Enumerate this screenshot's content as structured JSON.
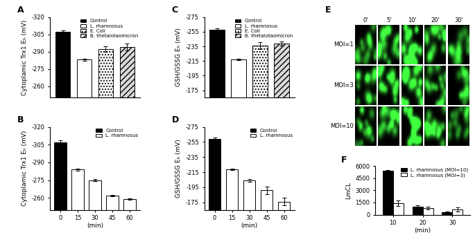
{
  "chart_data": [
    {
      "title": "A",
      "type": "bar",
      "y_label": "Cytoplamic Trx1 Eₕ (mV)",
      "ylim": [
        -250,
        -320
      ],
      "yticks": [
        -320,
        -305,
        -290,
        -275,
        -260
      ],
      "tick_labels": "y",
      "legend": "upper right",
      "series": [
        {
          "name": "Control",
          "color": "#000000",
          "values": [
            -307
          ],
          "errors": [
            1.5
          ]
        },
        {
          "name": "L. rhamnosus",
          "color": "#ffffff",
          "values": [
            -283
          ],
          "errors": [
            1
          ]
        },
        {
          "name": "E. Coli",
          "color": "#ffffff",
          "values": [
            -292
          ],
          "errors": [
            2.5
          ]
        },
        {
          "name": "B. thetaiotaomicron",
          "color": "#d9d9d9",
          "values": [
            -294
          ],
          "errors": [
            3
          ]
        }
      ]
    },
    {
      "title": "B",
      "type": "bar",
      "y_label": "Cytoplamic Trx1 Eₕ (mV)",
      "x_label": "(min)",
      "categories": [
        "0",
        "15",
        "30",
        "45",
        "60"
      ],
      "ylim": [
        -250,
        -320
      ],
      "yticks": [
        -320,
        -305,
        -290,
        -275,
        -260
      ],
      "legend": "upper right",
      "series": [
        {
          "name": "Control",
          "color": "#000000",
          "values": [
            -307,
            null,
            null,
            null,
            null
          ],
          "errors": [
            1.5,
            null,
            null,
            null,
            null
          ]
        },
        {
          "name": "L. rhamnosus",
          "color": "#ffffff",
          "values": [
            null,
            -284,
            -275,
            -262,
            -259
          ],
          "errors": [
            null,
            1,
            0.8,
            0.6,
            0.6
          ]
        }
      ]
    },
    {
      "title": "C",
      "type": "bar",
      "y_label": "GSH/GSSG Eₕ (mV)",
      "ylim": [
        -165,
        -275
      ],
      "yticks": [
        -275,
        -255,
        -235,
        -215,
        -195,
        -175
      ],
      "tick_labels": "y",
      "legend": "upper right",
      "series": [
        {
          "name": "Control",
          "color": "#000000",
          "values": [
            -258
          ],
          "errors": [
            1.5
          ]
        },
        {
          "name": "L. rhamnosus",
          "color": "#ffffff",
          "values": [
            -217
          ],
          "errors": [
            1
          ]
        },
        {
          "name": "E. Coli",
          "color": "#ffffff",
          "values": [
            -236
          ],
          "errors": [
            5
          ]
        },
        {
          "name": "B. thetaiotaomicron",
          "color": "#d9d9d9",
          "values": [
            -239
          ],
          "errors": [
            3
          ]
        }
      ]
    },
    {
      "title": "D",
      "type": "bar",
      "y_label": "GSH/GSSG Eₕ (mV)",
      "x_label": "(min)",
      "categories": [
        "0",
        "15",
        "30",
        "45",
        "60"
      ],
      "ylim": [
        -165,
        -275
      ],
      "yticks": [
        -275,
        -255,
        -235,
        -215,
        -195,
        -175
      ],
      "legend": "upper right",
      "series": [
        {
          "name": "Control",
          "color": "#000000",
          "values": [
            -259,
            null,
            null,
            null,
            null
          ],
          "errors": [
            1.5,
            null,
            null,
            null,
            null
          ]
        },
        {
          "name": "L. rhamnosus",
          "color": "#ffffff",
          "values": [
            null,
            -219,
            -204,
            -191,
            -176
          ],
          "errors": [
            null,
            1,
            1.5,
            5,
            5
          ]
        }
      ]
    },
    {
      "title": "E",
      "type": "image_grid",
      "columns": [
        "0'",
        "5'",
        "10'",
        "20'",
        "30'"
      ],
      "rows": [
        "MOI=1",
        "MOI=3",
        "MOI=10"
      ]
    },
    {
      "title": "F",
      "type": "bar",
      "y_label": "LmCL",
      "x_label": "(min)",
      "categories": [
        "10",
        "20",
        "30"
      ],
      "ylim": [
        0,
        6000
      ],
      "yticks": [
        0,
        1500,
        3000,
        4500,
        6000
      ],
      "legend": "upper right",
      "series": [
        {
          "name": "L. rhamnosus (MOI=10)",
          "color": "#000000",
          "values": [
            5400,
            950,
            350
          ],
          "errors": [
            60,
            180,
            60
          ]
        },
        {
          "name": "L. rhamnosus (MOI=3)",
          "color": "#ffffff",
          "values": [
            1400,
            800,
            650
          ],
          "errors": [
            350,
            150,
            250
          ]
        }
      ]
    }
  ]
}
